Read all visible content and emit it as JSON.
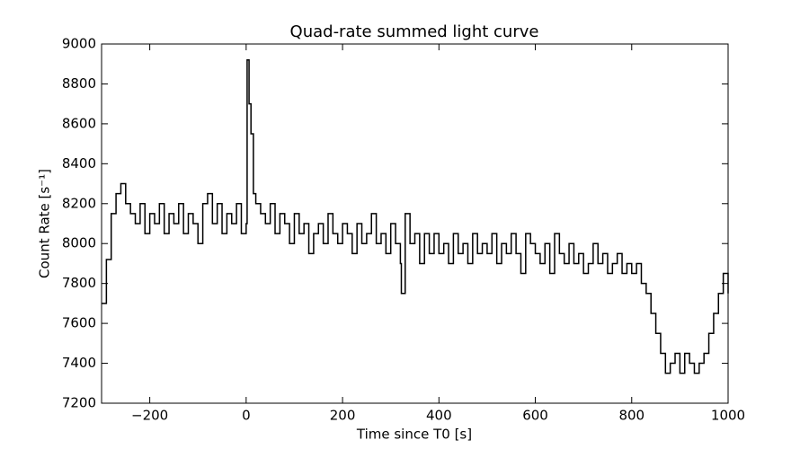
{
  "chart_data": {
    "type": "line",
    "title": "Quad-rate summed light curve",
    "x_label": "Time since T0 [s]",
    "y_label": "Count Rate [s⁻¹]",
    "drawstyle": "steps",
    "x": [
      -300,
      -290,
      -280,
      -270,
      -260,
      -250,
      -240,
      -230,
      -220,
      -210,
      -200,
      -190,
      -180,
      -170,
      -160,
      -150,
      -140,
      -130,
      -120,
      -110,
      -100,
      -90,
      -80,
      -70,
      -60,
      -50,
      -40,
      -30,
      -20,
      -10,
      0,
      2,
      6,
      10,
      15,
      20,
      30,
      40,
      50,
      60,
      70,
      80,
      90,
      100,
      110,
      120,
      130,
      140,
      150,
      160,
      170,
      180,
      190,
      200,
      210,
      220,
      230,
      240,
      250,
      260,
      270,
      280,
      290,
      300,
      310,
      320,
      322,
      330,
      340,
      350,
      360,
      370,
      380,
      390,
      400,
      410,
      420,
      430,
      440,
      450,
      460,
      470,
      480,
      490,
      500,
      510,
      520,
      530,
      540,
      550,
      560,
      570,
      580,
      590,
      600,
      610,
      620,
      630,
      640,
      650,
      660,
      670,
      680,
      690,
      700,
      710,
      720,
      730,
      740,
      750,
      760,
      770,
      780,
      790,
      800,
      810,
      820,
      830,
      840,
      850,
      860,
      870,
      880,
      890,
      900,
      910,
      920,
      930,
      940,
      950,
      960,
      970,
      980,
      990,
      1000
    ],
    "series": [
      {
        "name": "Quad-rate summed",
        "color": "#000000",
        "values": [
          7700,
          7920,
          8150,
          8250,
          8300,
          8200,
          8150,
          8100,
          8200,
          8050,
          8150,
          8100,
          8200,
          8050,
          8150,
          8100,
          8200,
          8050,
          8150,
          8100,
          8000,
          8200,
          8250,
          8100,
          8200,
          8050,
          8150,
          8100,
          8200,
          8050,
          8100,
          8920,
          8700,
          8550,
          8250,
          8200,
          8150,
          8100,
          8200,
          8050,
          8150,
          8100,
          8000,
          8150,
          8050,
          8100,
          7950,
          8050,
          8100,
          8000,
          8150,
          8050,
          8000,
          8100,
          8050,
          7950,
          8100,
          8000,
          8050,
          8150,
          8000,
          8050,
          7950,
          8100,
          8000,
          7900,
          7750,
          8150,
          8000,
          8050,
          7900,
          8050,
          7950,
          8050,
          7950,
          8000,
          7900,
          8050,
          7950,
          8000,
          7900,
          8050,
          7950,
          8000,
          7950,
          8050,
          7900,
          8000,
          7950,
          8050,
          7950,
          7850,
          8050,
          8000,
          7950,
          7900,
          8000,
          7850,
          8050,
          7950,
          7900,
          8000,
          7900,
          7950,
          7850,
          7900,
          8000,
          7900,
          7950,
          7850,
          7900,
          7950,
          7850,
          7900,
          7850,
          7900,
          7800,
          7750,
          7650,
          7550,
          7450,
          7350,
          7400,
          7450,
          7350,
          7450,
          7400,
          7350,
          7400,
          7450,
          7550,
          7650,
          7750,
          7850,
          7750
        ]
      }
    ],
    "xlim": [
      -300,
      1000
    ],
    "xticks": [
      {
        "value": -200,
        "label": "−200"
      },
      0,
      200,
      400,
      600,
      800,
      1000
    ],
    "ylim": [
      7200,
      9000
    ],
    "yticks": [
      7200,
      7400,
      7600,
      7800,
      8000,
      8200,
      8400,
      8600,
      8800,
      9000
    ],
    "grid": false
  }
}
